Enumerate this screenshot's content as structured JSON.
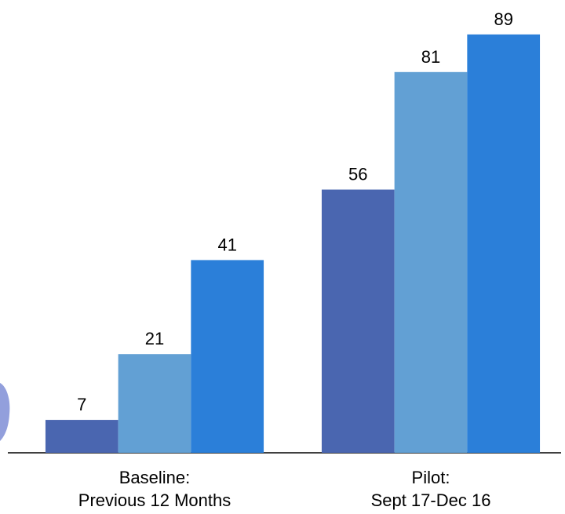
{
  "chart_data": {
    "type": "bar",
    "categories": [
      "Baseline:\nPrevious 12 Months",
      "Pilot:\nSept 17-Dec 16"
    ],
    "series": [
      {
        "color": "#4a66b0",
        "values": [
          7,
          56
        ]
      },
      {
        "color": "#62a0d4",
        "values": [
          21,
          81
        ]
      },
      {
        "color": "#2b7fd9",
        "values": [
          41,
          89
        ]
      }
    ]
  }
}
